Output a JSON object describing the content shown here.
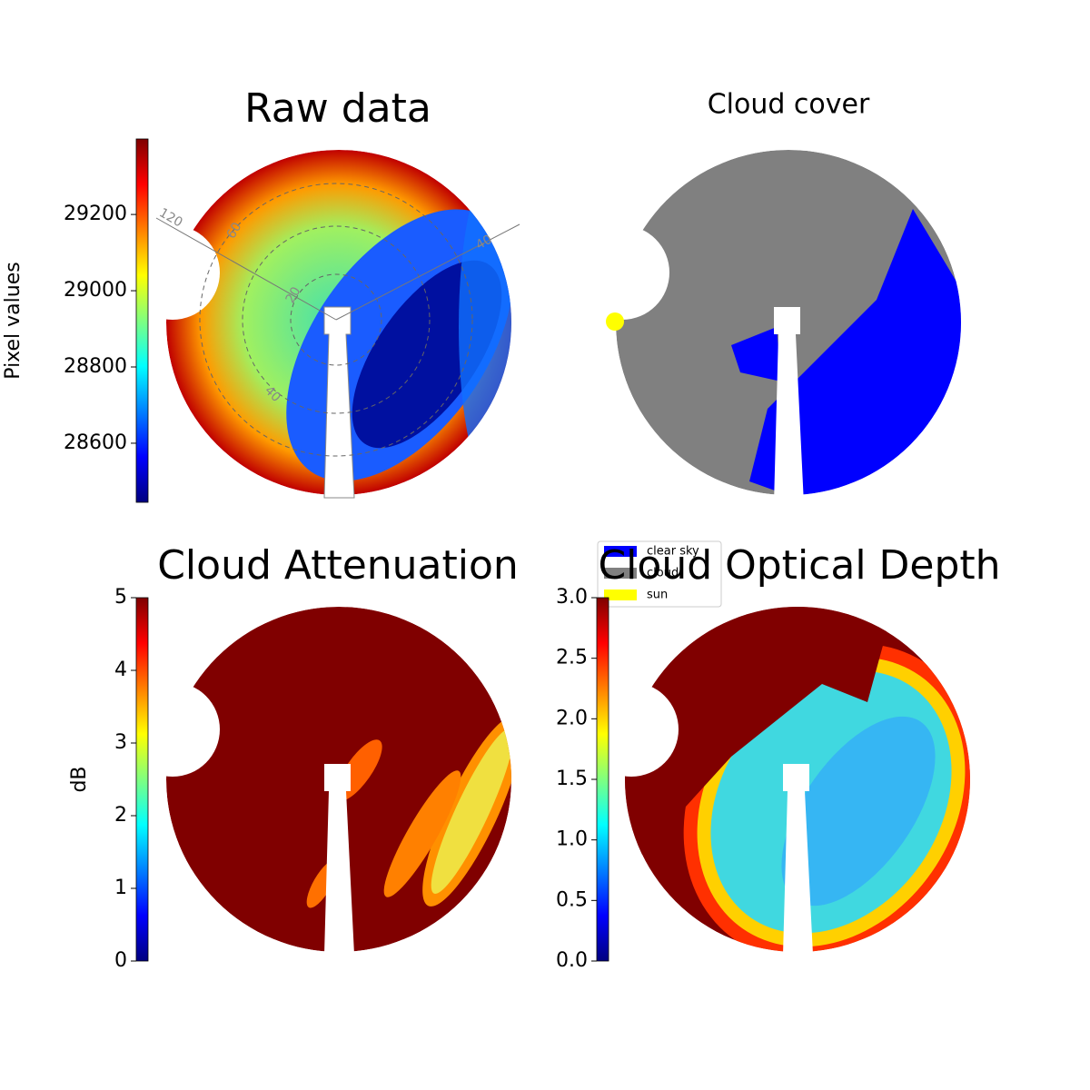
{
  "chart_data": [
    {
      "type": "image",
      "title": "Raw data",
      "colorbar_label": "Pixel values",
      "colormap": "jet",
      "ylim": [
        28445,
        29398
      ],
      "yticks": [
        28600,
        28800,
        29000,
        29200
      ],
      "annotations": [
        "120",
        "60",
        "20",
        "40",
        "40"
      ]
    },
    {
      "type": "image",
      "title": "Cloud cover",
      "legend_items": [
        {
          "name": "clear sky",
          "color": "#0000ff"
        },
        {
          "name": "cloud",
          "color": "#808080"
        },
        {
          "name": "sun",
          "color": "#ffff00"
        }
      ]
    },
    {
      "type": "image",
      "title": "Cloud Attenuation",
      "colorbar_label": "dB",
      "colormap": "jet",
      "ylim": [
        0,
        5
      ],
      "yticks": [
        0,
        1,
        2,
        3,
        4,
        5
      ]
    },
    {
      "type": "image",
      "title": "Cloud Optical Depth",
      "colormap": "jet",
      "ylim": [
        0,
        3
      ],
      "yticks": [
        {
          "value": 0,
          "label": "0.0"
        },
        0.5,
        {
          "value": 1,
          "label": "1.0"
        },
        1.5,
        {
          "value": 2,
          "label": "2.0"
        },
        2.5,
        {
          "value": 3,
          "label": "3.0"
        }
      ]
    }
  ]
}
